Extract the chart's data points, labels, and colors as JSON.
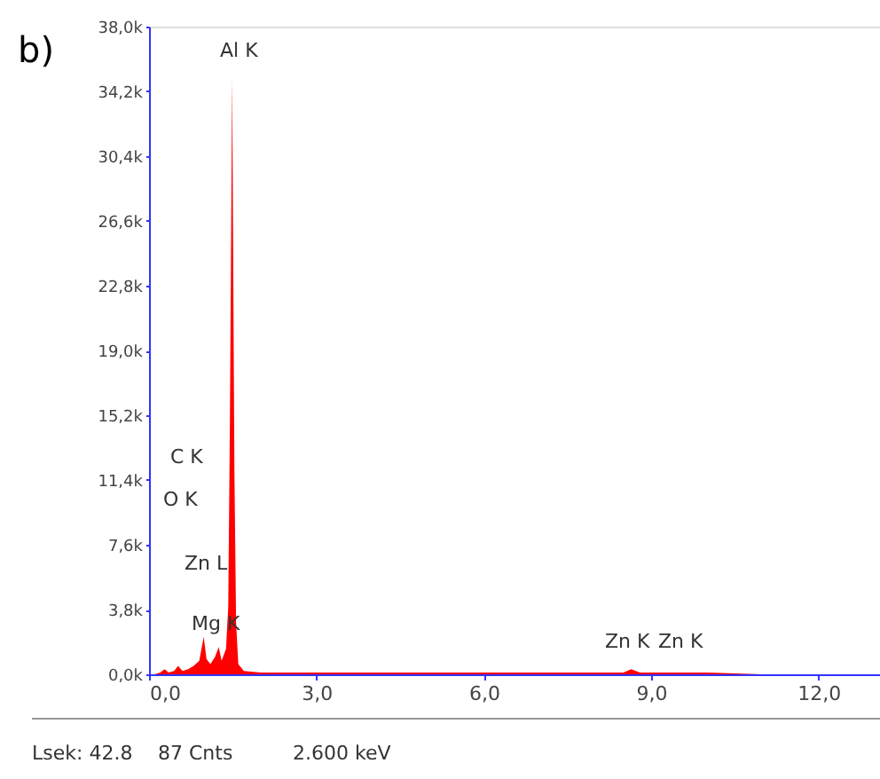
{
  "chart_data": {
    "type": "area",
    "title": "b)",
    "x": [
      0.1,
      0.2,
      0.28,
      0.35,
      0.45,
      0.52,
      0.6,
      0.7,
      0.8,
      0.9,
      0.98,
      1.03,
      1.1,
      1.18,
      1.25,
      1.3,
      1.38,
      1.42,
      1.45,
      1.49,
      1.53,
      1.56,
      1.6,
      1.7,
      2.0,
      3.0,
      4.0,
      5.0,
      6.0,
      7.0,
      8.0,
      8.5,
      8.64,
      8.8,
      9.2,
      9.57,
      10.0,
      11.0,
      12.0,
      13.0
    ],
    "series": [
      {
        "color": "#ff0000",
        "values": [
          0.0,
          0.1,
          0.3,
          0.1,
          0.2,
          0.5,
          0.2,
          0.3,
          0.5,
          0.8,
          2.2,
          0.9,
          0.6,
          1.0,
          1.6,
          0.8,
          1.5,
          4.0,
          15.0,
          35.0,
          12.0,
          3.0,
          0.6,
          0.2,
          0.1,
          0.1,
          0.1,
          0.1,
          0.1,
          0.1,
          0.1,
          0.1,
          0.3,
          0.1,
          0.1,
          0.1,
          0.1,
          0.0,
          0.0,
          0.0
        ]
      }
    ],
    "xlim": [
      0,
      13.1
    ],
    "xticks": [
      {
        "value": 0,
        "label": "0,0"
      },
      {
        "value": 3,
        "label": "3,0"
      },
      {
        "value": 6,
        "label": "6,0"
      },
      {
        "value": 9,
        "label": "9,0"
      },
      {
        "value": 12,
        "label": "12,0"
      }
    ],
    "ylim": [
      0,
      38
    ],
    "yticks": [
      {
        "value": 0,
        "label": "0,0k"
      },
      {
        "value": 3.8,
        "label": "3,8k"
      },
      {
        "value": 7.6,
        "label": "7,6k"
      },
      {
        "value": 11.4,
        "label": "11,4k"
      },
      {
        "value": 15.2,
        "label": "15,2k"
      },
      {
        "value": 19.0,
        "label": "19,0k"
      },
      {
        "value": 22.8,
        "label": "22,8k"
      },
      {
        "value": 26.6,
        "label": "26,6k"
      },
      {
        "value": 30.4,
        "label": "30,4k"
      },
      {
        "value": 34.2,
        "label": "34,2k"
      },
      {
        "value": 38.0,
        "label": "38,0k"
      }
    ],
    "grid": false,
    "annotations": [
      "Al K",
      "C K",
      "O K",
      "Zn L",
      "Mg K",
      "Zn K",
      "Zn K",
      "Lsek: 42.8",
      "87 Cnts",
      "2.600 keV"
    ]
  }
}
